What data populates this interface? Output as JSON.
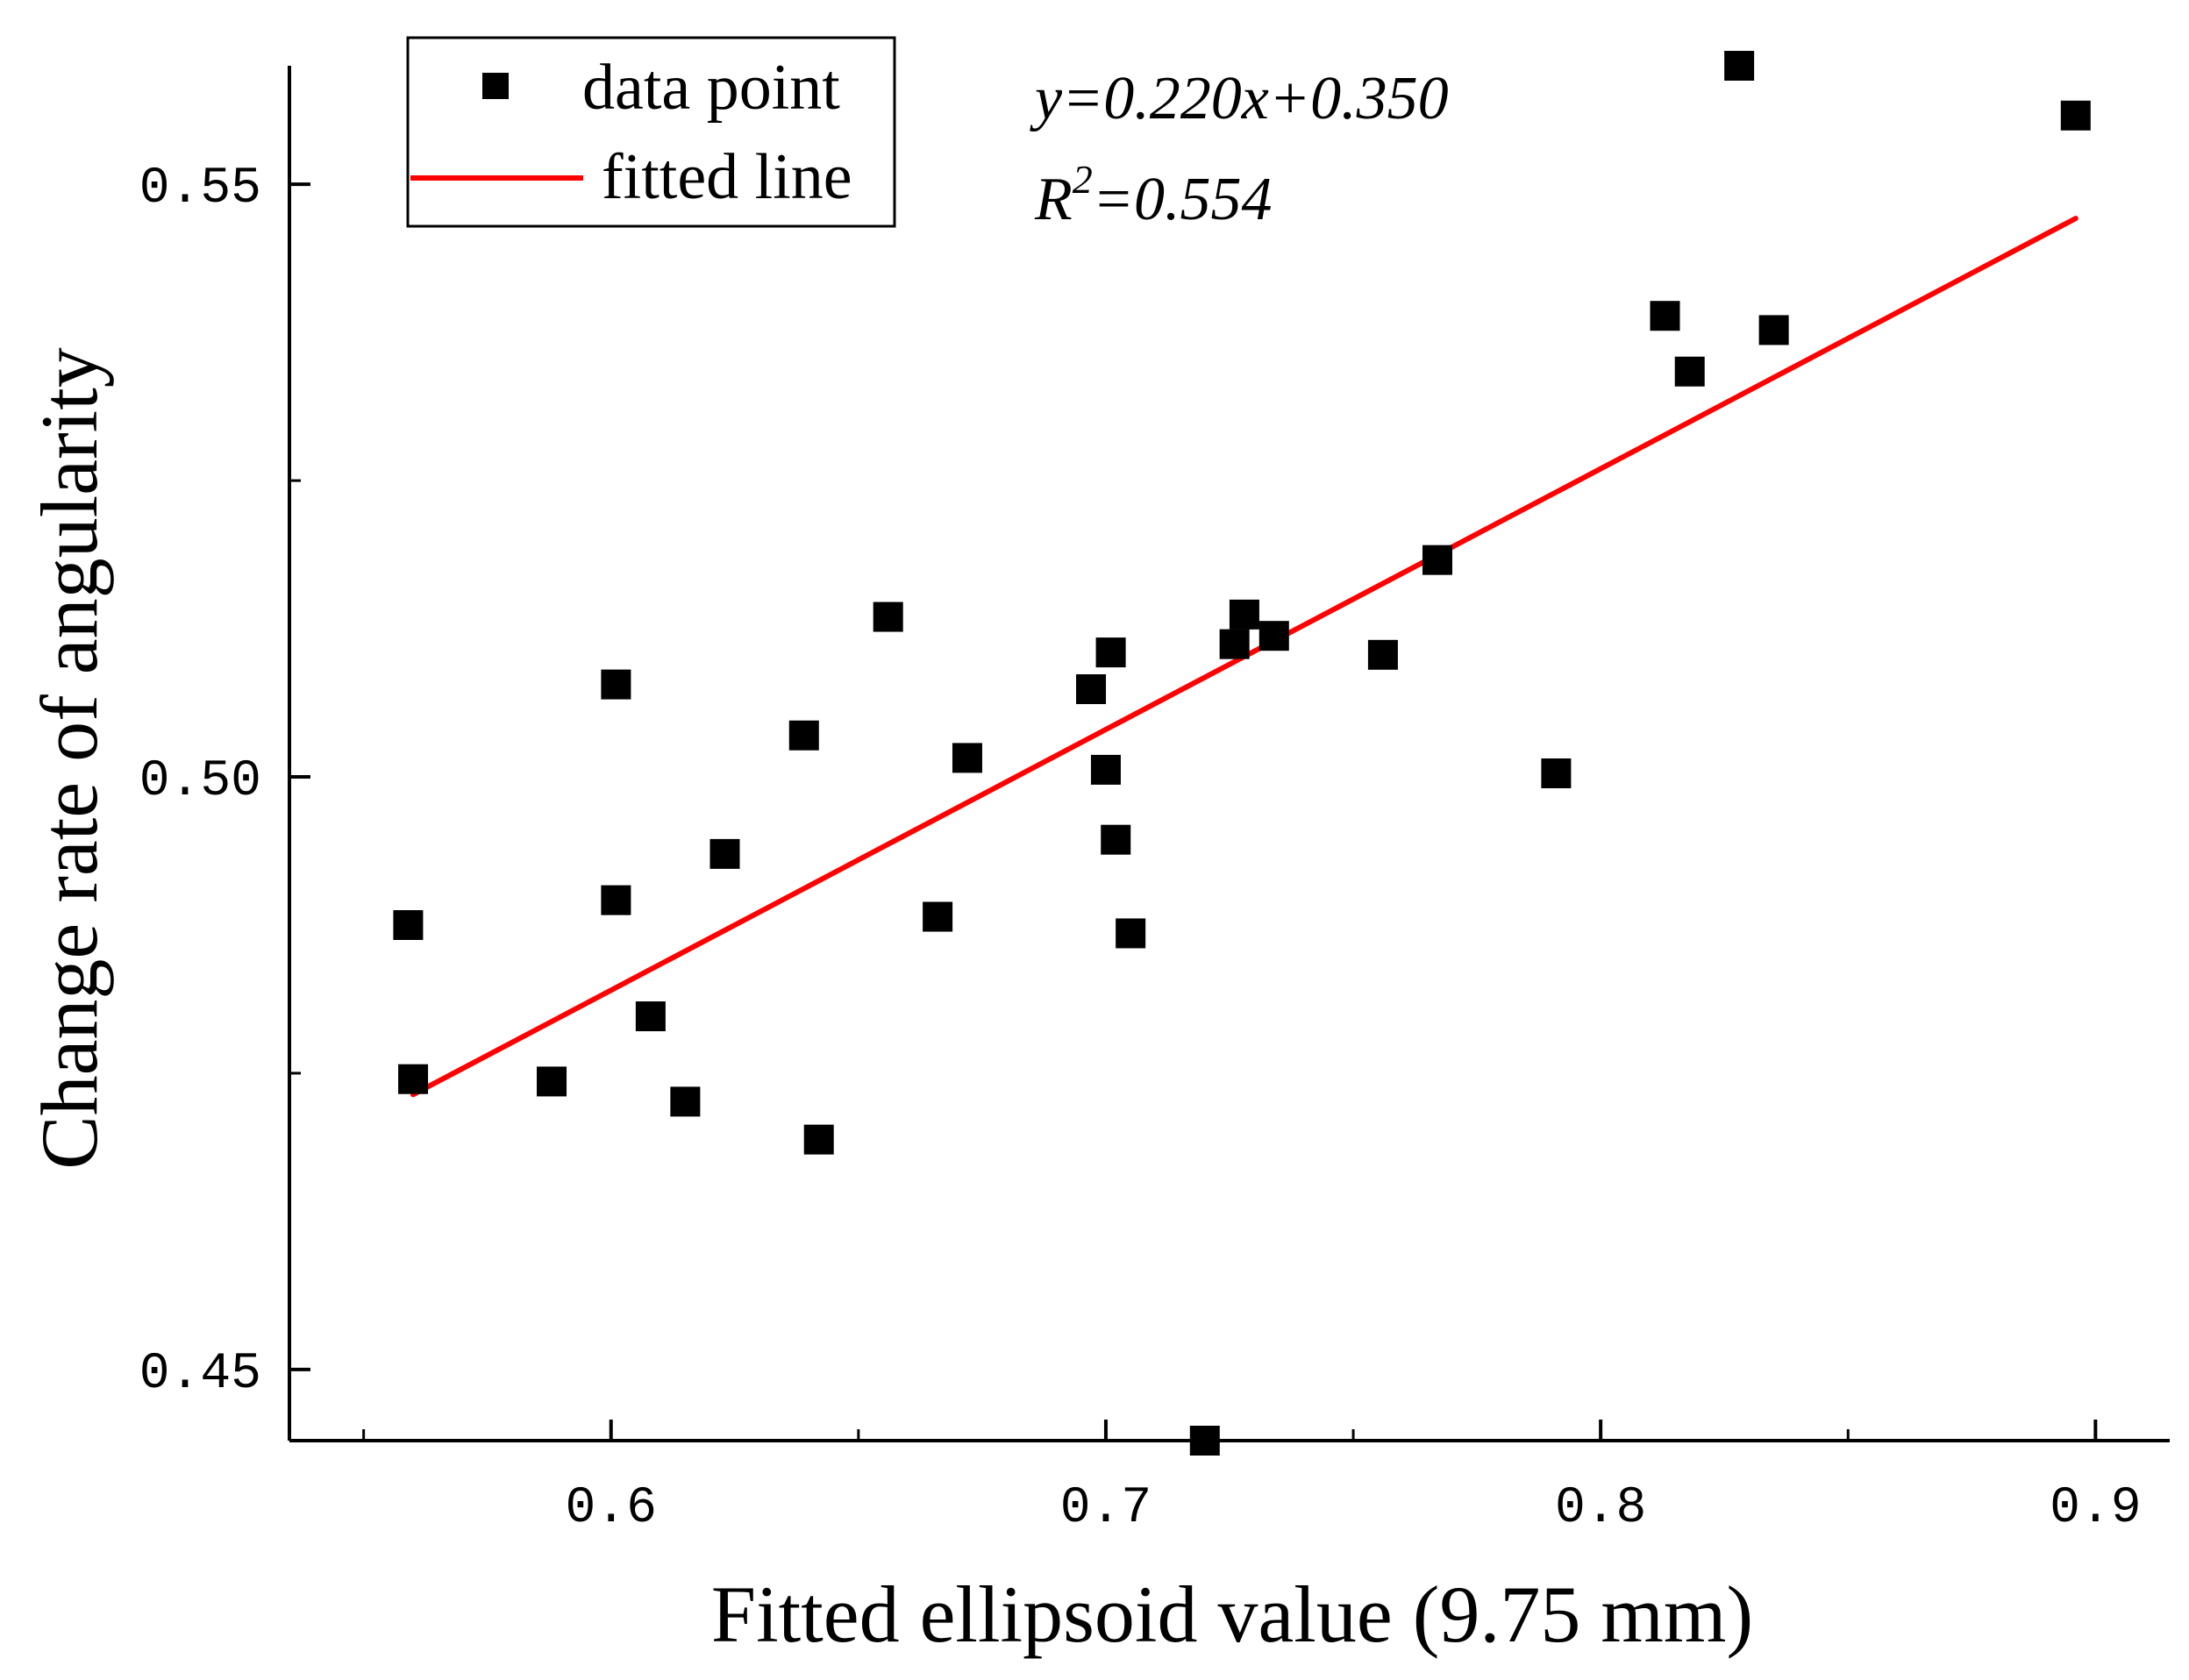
{
  "chart_data": {
    "type": "scatter",
    "xlabel": "Fitted ellipsoid value (9.75 mm)",
    "ylabel": "Change rate of angularity",
    "xlim": [
      0.535,
      0.915
    ],
    "ylim": [
      0.444,
      0.56
    ],
    "x_ticks": [
      {
        "value": 0.6,
        "label": "0.6"
      },
      {
        "value": 0.7,
        "label": "0.7"
      },
      {
        "value": 0.8,
        "label": "0.8"
      },
      {
        "value": 0.9,
        "label": "0.9"
      }
    ],
    "x_minor_ticks": [
      0.55,
      0.65,
      0.75,
      0.85
    ],
    "y_ticks": [
      {
        "value": 0.45,
        "label": "0.45"
      },
      {
        "value": 0.5,
        "label": "0.50"
      },
      {
        "value": 0.55,
        "label": "0.55"
      }
    ],
    "y_minor_ticks": [
      0.475,
      0.525
    ],
    "legend": {
      "placement": "top-left",
      "entries": [
        {
          "label": "data point",
          "kind": "marker"
        },
        {
          "label": "fitted line",
          "kind": "line"
        }
      ]
    },
    "annotation": {
      "equation": "y=0.220x+0.350",
      "r2_base": "R",
      "r2_sup": "2",
      "r2_value": "=0.554"
    },
    "series": [
      {
        "name": "data point",
        "kind": "scatter",
        "color": "#000000",
        "points": [
          [
            0.559,
            0.4875
          ],
          [
            0.56,
            0.4745
          ],
          [
            0.588,
            0.4743
          ],
          [
            0.601,
            0.4896
          ],
          [
            0.601,
            0.5078
          ],
          [
            0.608,
            0.4798
          ],
          [
            0.615,
            0.4726
          ],
          [
            0.623,
            0.4935
          ],
          [
            0.639,
            0.5035
          ],
          [
            0.642,
            0.4694
          ],
          [
            0.656,
            0.5135
          ],
          [
            0.666,
            0.4882
          ],
          [
            0.672,
            0.5016
          ],
          [
            0.697,
            0.5074
          ],
          [
            0.7,
            0.5006
          ],
          [
            0.701,
            0.5105
          ],
          [
            0.702,
            0.4947
          ],
          [
            0.705,
            0.4868
          ],
          [
            0.72,
            0.444
          ],
          [
            0.726,
            0.5112
          ],
          [
            0.728,
            0.5137
          ],
          [
            0.734,
            0.5119
          ],
          [
            0.756,
            0.5103
          ],
          [
            0.767,
            0.5183
          ],
          [
            0.791,
            0.5003
          ],
          [
            0.813,
            0.5389
          ],
          [
            0.818,
            0.5342
          ],
          [
            0.828,
            0.56
          ],
          [
            0.835,
            0.5377
          ],
          [
            0.896,
            0.5558
          ]
        ]
      },
      {
        "name": "fitted line",
        "kind": "line",
        "color": "#ff0000",
        "slope": 0.22,
        "intercept": 0.35,
        "x_range": [
          0.56,
          0.896
        ],
        "points": [
          [
            0.56,
            0.4732
          ],
          [
            0.896,
            0.5471
          ]
        ]
      }
    ]
  }
}
